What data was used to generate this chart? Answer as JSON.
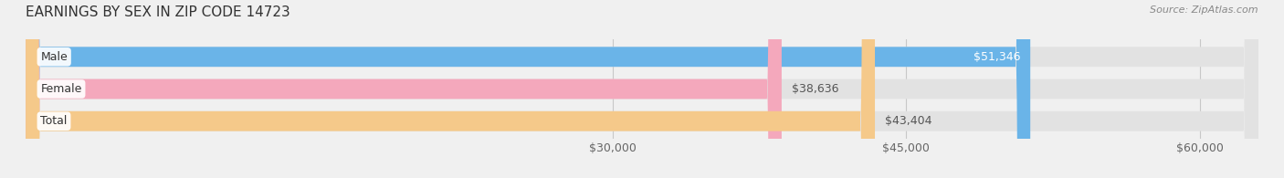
{
  "title": "EARNINGS BY SEX IN ZIP CODE 14723",
  "source": "Source: ZipAtlas.com",
  "categories": [
    "Male",
    "Female",
    "Total"
  ],
  "values": [
    51346,
    38636,
    43404
  ],
  "bar_colors": [
    "#6ab4e8",
    "#f4a8bc",
    "#f5c98a"
  ],
  "value_labels": [
    "$51,346",
    "$38,636",
    "$43,404"
  ],
  "x_min": 0,
  "x_max": 63000,
  "x_ticks": [
    30000,
    45000,
    60000
  ],
  "x_tick_labels": [
    "$30,000",
    "$45,000",
    "$60,000"
  ],
  "background_color": "#f0f0f0",
  "bar_bg_color": "#e2e2e2",
  "bar_height": 0.62,
  "title_fontsize": 11,
  "label_fontsize": 9,
  "value_fontsize": 9,
  "tick_fontsize": 9,
  "source_fontsize": 8
}
